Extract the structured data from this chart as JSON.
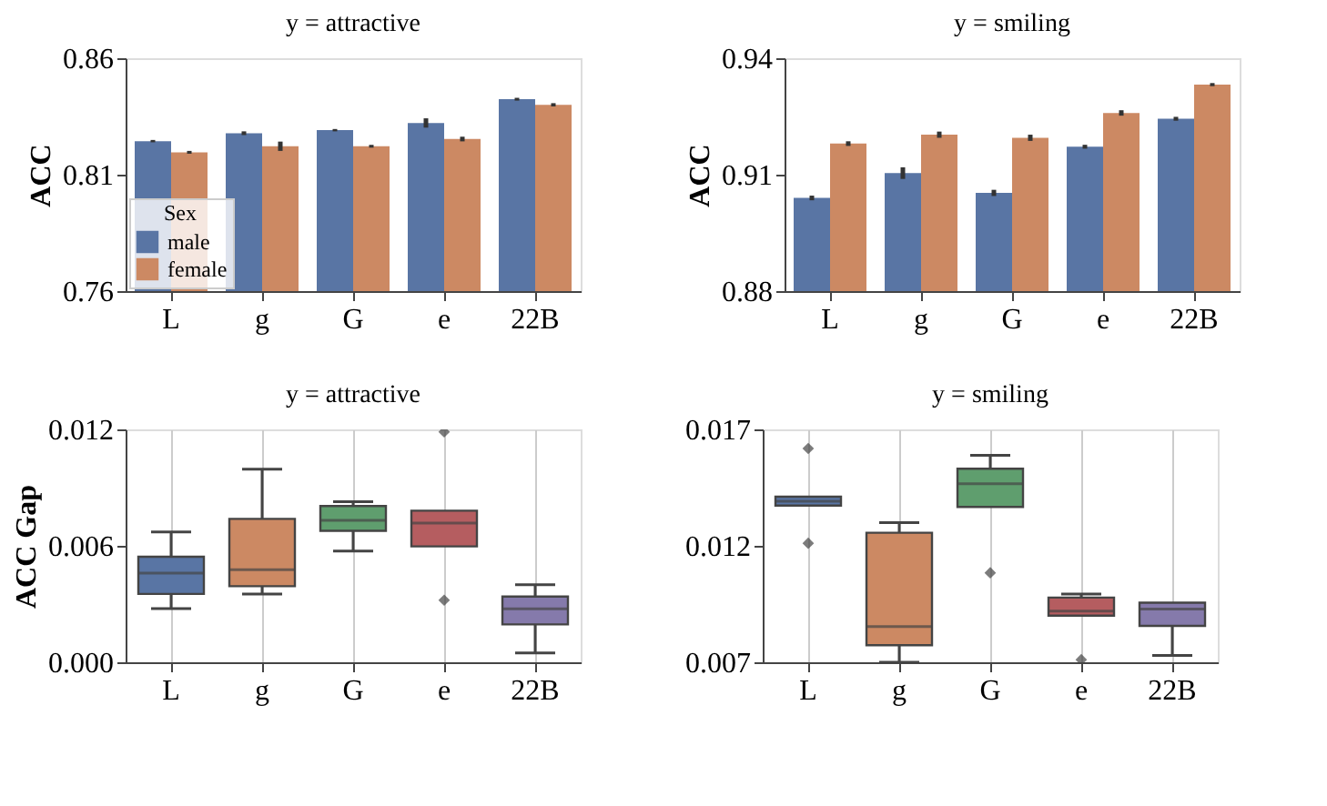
{
  "chart_data": [
    {
      "type": "bar",
      "title": "y = attractive",
      "ylabel": "ACC",
      "categories": [
        "L",
        "g",
        "G",
        "e",
        "22B"
      ],
      "legend_title": "Sex",
      "legend": "bottom left",
      "ylim": [
        0.76,
        0.86
      ],
      "yticks": [
        0.76,
        0.81,
        0.86
      ],
      "series": [
        {
          "name": "male",
          "color": "#5975a4",
          "values": [
            0.8244,
            0.8278,
            0.8291,
            0.8322,
            0.8424
          ],
          "errors": [
            0.0005,
            0.0008,
            0.0005,
            0.002,
            0.0006
          ]
        },
        {
          "name": "female",
          "color": "#cc8963",
          "values": [
            0.8196,
            0.8222,
            0.8222,
            0.8253,
            0.84
          ],
          "errors": [
            0.0006,
            0.002,
            0.0006,
            0.001,
            0.0007
          ]
        }
      ]
    },
    {
      "type": "bar",
      "title": "y = smiling",
      "ylabel": "ACC",
      "categories": [
        "L",
        "g",
        "G",
        "e",
        "22B"
      ],
      "ylim": [
        0.88,
        0.94
      ],
      "yticks": [
        0.88,
        0.91,
        0.94
      ],
      "series": [
        {
          "color": "#5975a4",
          "values": [
            0.904,
            0.9104,
            0.9053,
            0.9172,
            0.9244
          ],
          "errors": [
            0.0006,
            0.0015,
            0.0008,
            0.0005,
            0.0005
          ]
        },
        {
          "color": "#cc8963",
          "values": [
            0.918,
            0.9203,
            0.9195,
            0.9259,
            0.9332
          ],
          "errors": [
            0.0006,
            0.0008,
            0.0008,
            0.0007,
            0.0004
          ]
        }
      ]
    },
    {
      "type": "box",
      "title": "y = attractive",
      "ylabel": "ACC Gap",
      "categories": [
        "L",
        "g",
        "G",
        "e",
        "22B"
      ],
      "ylim": [
        0.0,
        0.012
      ],
      "yticks": [
        {
          "value": 0.0,
          "label": "0.000"
        },
        {
          "value": 0.006,
          "label": "0.006"
        },
        {
          "value": 0.012,
          "label": "0.012"
        }
      ],
      "grid": "x",
      "marker": "diamond",
      "colors": [
        "#5975a4",
        "#cc8963",
        "#5f9e6e",
        "#b55d60",
        "#857aab"
      ],
      "boxes": [
        {
          "low": 0.00277,
          "q1": 0.00352,
          "median": 0.00459,
          "q3": 0.00544,
          "high": 0.00672
        },
        {
          "low": 0.00352,
          "q1": 0.00392,
          "median": 0.00477,
          "q3": 0.00739,
          "high": 0.00995
        },
        {
          "low": 0.00573,
          "q1": 0.00677,
          "median": 0.00731,
          "q3": 0.00805,
          "high": 0.00827
        },
        {
          "low": 0.00597,
          "q1": 0.00597,
          "median": 0.00717,
          "q3": 0.00781,
          "high": 0.00781,
          "outliers": [
            0.01187,
            0.0032
          ]
        },
        {
          "low": 0.00048,
          "q1": 0.00195,
          "median": 0.00275,
          "q3": 0.00339,
          "high": 0.004
        }
      ]
    },
    {
      "type": "box",
      "title": "y = smiling",
      "categories": [
        "L",
        "g",
        "G",
        "e",
        "22B"
      ],
      "ylim": [
        0.007,
        0.017
      ],
      "yticks": [
        {
          "value": 0.007,
          "label": "0.007"
        },
        {
          "value": 0.012,
          "label": "0.012"
        },
        {
          "value": 0.017,
          "label": "0.017"
        }
      ],
      "grid": "x",
      "marker": "diamond",
      "colors": [
        "#5975a4",
        "#cc8963",
        "#5f9e6e",
        "#b55d60",
        "#857aab"
      ],
      "boxes": [
        {
          "low": 0.01373,
          "q1": 0.01373,
          "median": 0.01391,
          "q3": 0.01411,
          "high": 0.01411,
          "outliers": [
            0.01618,
            0.01211
          ]
        },
        {
          "low": 0.007,
          "q1": 0.00773,
          "median": 0.00853,
          "q3": 0.01256,
          "high": 0.013
        },
        {
          "low": 0.01367,
          "q1": 0.01367,
          "median": 0.01467,
          "q3": 0.01531,
          "high": 0.01589,
          "outliers": [
            0.01084
          ]
        },
        {
          "low": 0.009,
          "q1": 0.009,
          "median": 0.0092,
          "q3": 0.00978,
          "high": 0.00993,
          "outliers": [
            0.00711
          ]
        },
        {
          "low": 0.00729,
          "q1": 0.00856,
          "median": 0.00929,
          "q3": 0.00956,
          "high": 0.00956
        }
      ]
    }
  ]
}
